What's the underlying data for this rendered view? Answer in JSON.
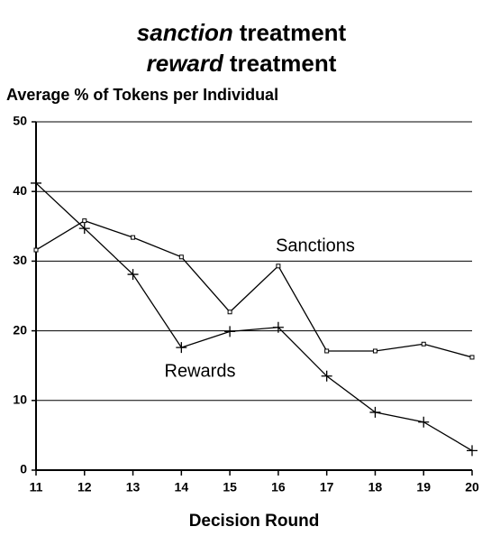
{
  "chart_data": {
    "type": "line",
    "title": [
      {
        "emphasis": "sanction",
        "text": "treatment"
      },
      {
        "emphasis": "reward",
        "text": "treatment"
      }
    ],
    "y_label": "Average % of Tokens per Individual",
    "x_label": "Decision Round",
    "x": [
      11,
      12,
      13,
      14,
      15,
      16,
      17,
      18,
      19,
      20
    ],
    "xlim": [
      11,
      20
    ],
    "xticks": [
      11,
      12,
      13,
      14,
      15,
      16,
      17,
      18,
      19,
      20
    ],
    "ylim": [
      0,
      50
    ],
    "yticks": [
      0,
      10,
      20,
      30,
      40,
      50
    ],
    "grid": true,
    "series": [
      {
        "name": "Sanctions",
        "color": "#000000",
        "marker": "square",
        "values": [
          31.6,
          35.8,
          33.4,
          30.6,
          22.7,
          29.3,
          17.1,
          17.1,
          18.1,
          16.2
        ]
      },
      {
        "name": "Rewards",
        "color": "#000000",
        "marker": "plus",
        "values": [
          41.2,
          34.7,
          28.1,
          17.6,
          19.9,
          20.5,
          13.5,
          8.3,
          6.9,
          2.8
        ]
      }
    ]
  }
}
